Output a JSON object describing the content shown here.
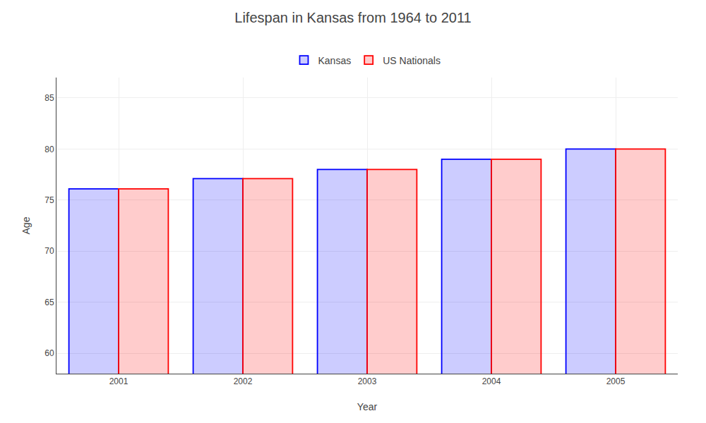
{
  "chart_data": {
    "type": "bar",
    "title": "Lifespan in Kansas from 1964 to 2011",
    "x_label": "Year",
    "y_label": "Age",
    "categories": [
      "2001",
      "2002",
      "2003",
      "2004",
      "2005"
    ],
    "series": [
      {
        "name": "Kansas",
        "color": "#0000ff",
        "values": [
          76.1,
          77.1,
          78.0,
          79.0,
          80.0
        ]
      },
      {
        "name": "US Nationals",
        "color": "#ff0000",
        "values": [
          76.1,
          77.1,
          78.0,
          79.0,
          80.0
        ]
      }
    ],
    "ylim": [
      58,
      87
    ],
    "yticks": [
      60,
      65,
      70,
      75,
      80,
      85
    ],
    "grid": true,
    "legend": "upper center"
  }
}
